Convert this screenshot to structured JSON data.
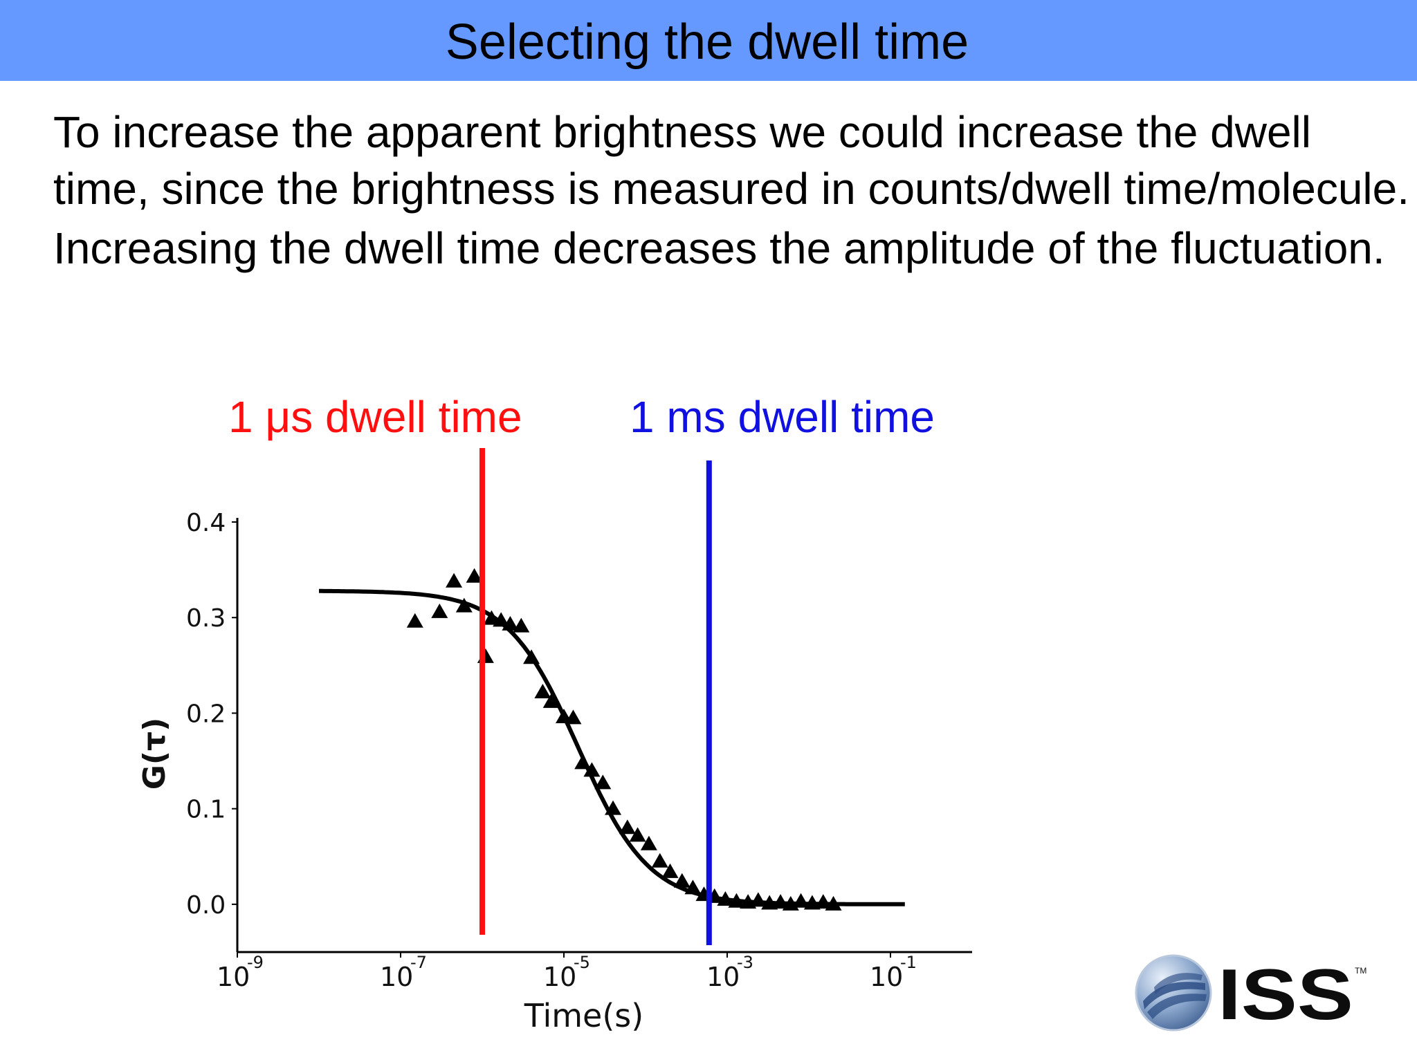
{
  "slide": {
    "title": "Selecting the dwell time",
    "paragraph_1": "To increase the apparent brightness we could increase the dwell time, since the brightness is measured in counts/dwell time/molecule.",
    "paragraph_2": "Increasing the dwell time decreases the amplitude of the fluctuation."
  },
  "logo": {
    "text": "ISS",
    "trademark": "TM"
  },
  "chart_data": {
    "type": "scatter",
    "xlabel": "Time(s)",
    "ylabel": "G(τ)",
    "x_scale": "log",
    "xlim": [
      1e-09,
      1
    ],
    "ylim": [
      -0.05,
      0.4
    ],
    "x_ticks": [
      {
        "value": 1e-09,
        "label": "10",
        "exp": "-9"
      },
      {
        "value": 1e-07,
        "label": "10",
        "exp": "-7"
      },
      {
        "value": 1e-05,
        "label": "10",
        "exp": "-5"
      },
      {
        "value": 0.001,
        "label": "10",
        "exp": "-3"
      },
      {
        "value": 0.1,
        "label": "10",
        "exp": "-1"
      }
    ],
    "y_ticks": [
      {
        "value": 0.4,
        "label": "0.4"
      },
      {
        "value": 0.3,
        "label": "0.3"
      },
      {
        "value": 0.2,
        "label": "0.2"
      },
      {
        "value": 0.1,
        "label": "0.1"
      },
      {
        "value": 0.0,
        "label": "0.0"
      }
    ],
    "dwell_markers": [
      {
        "label": "1 μs dwell time",
        "x": 1e-06,
        "color": "#ff1010"
      },
      {
        "label": "1 ms dwell time",
        "x": 0.0006,
        "color": "#1010e0"
      }
    ],
    "fit_curve": {
      "g0": 0.328,
      "tau_d": 1.5e-05,
      "x_start": 1e-08,
      "x_end": 0.15
    },
    "series": [
      {
        "marker": "triangle",
        "points": [
          [
            1.5e-07,
            0.296
          ],
          [
            3e-07,
            0.306
          ],
          [
            4.5e-07,
            0.338
          ],
          [
            6e-07,
            0.312
          ],
          [
            8e-07,
            0.343
          ],
          [
            1.1e-06,
            0.259
          ],
          [
            1.3e-06,
            0.299
          ],
          [
            1.7e-06,
            0.297
          ],
          [
            2.2e-06,
            0.293
          ],
          [
            3e-06,
            0.291
          ],
          [
            4e-06,
            0.258
          ],
          [
            5.5e-06,
            0.222
          ],
          [
            7e-06,
            0.212
          ],
          [
            1e-05,
            0.196
          ],
          [
            1.3e-05,
            0.195
          ],
          [
            1.7e-05,
            0.148
          ],
          [
            2.2e-05,
            0.14
          ],
          [
            3e-05,
            0.127
          ],
          [
            4e-05,
            0.1
          ],
          [
            6e-05,
            0.08
          ],
          [
            8e-05,
            0.072
          ],
          [
            0.00011,
            0.063
          ],
          [
            0.00015,
            0.045
          ],
          [
            0.0002,
            0.034
          ],
          [
            0.00028,
            0.024
          ],
          [
            0.00038,
            0.017
          ],
          [
            0.00052,
            0.01
          ],
          [
            0.0007,
            0.008
          ],
          [
            0.00095,
            0.005
          ],
          [
            0.0013,
            0.003
          ],
          [
            0.0018,
            0.002
          ],
          [
            0.0024,
            0.004
          ],
          [
            0.0033,
            0.001
          ],
          [
            0.0045,
            0.002
          ],
          [
            0.006,
            0.0
          ],
          [
            0.008,
            0.003
          ],
          [
            0.011,
            0.001
          ],
          [
            0.015,
            0.002
          ],
          [
            0.02,
            0.0
          ]
        ]
      }
    ]
  }
}
